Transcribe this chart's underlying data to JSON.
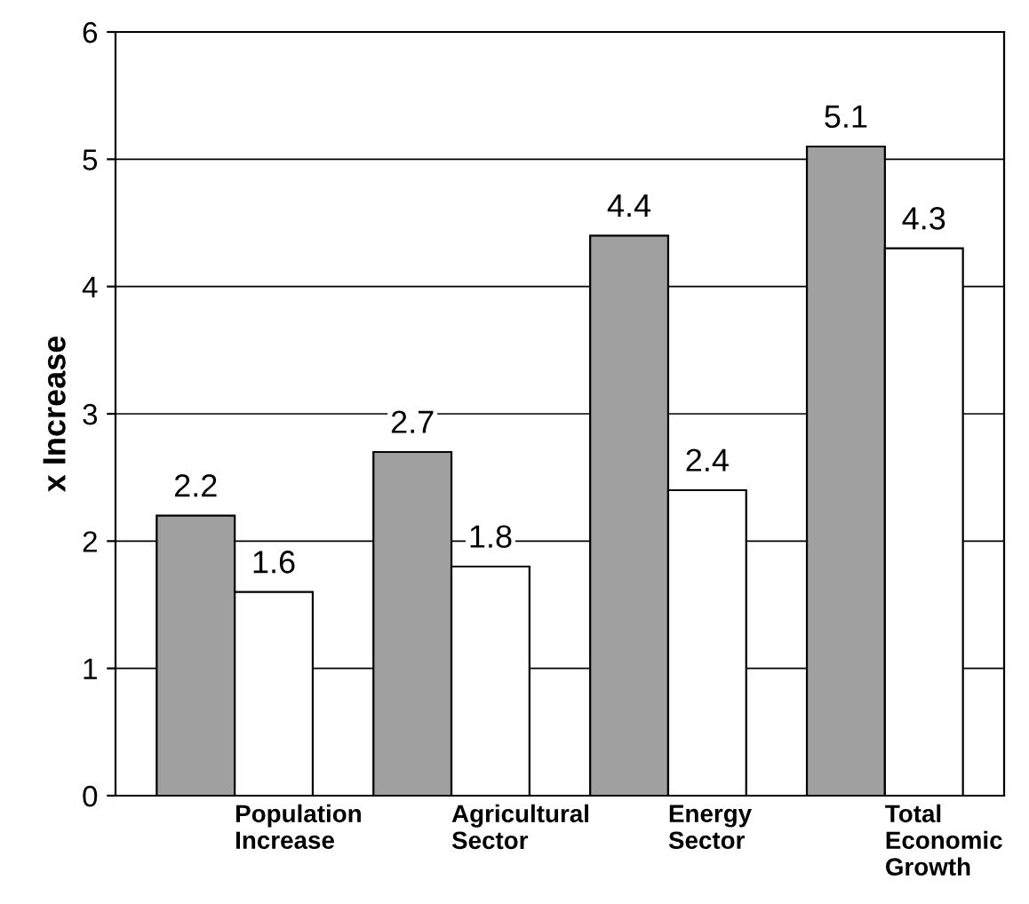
{
  "chart_data": {
    "type": "bar",
    "ylabel": "x Increase",
    "categories": [
      "Population\nIncrease",
      "Agricultural\nSector",
      "Energy\nSector",
      "Total\nEconomic\nGrowth"
    ],
    "series": [
      {
        "color": "#a0a0a0",
        "values": [
          2.2,
          2.7,
          4.4,
          5.1
        ]
      },
      {
        "color": "#ffffff",
        "values": [
          1.6,
          1.8,
          2.4,
          4.3
        ]
      }
    ],
    "ylim": [
      0,
      6
    ],
    "yticks": [
      0,
      1,
      2,
      3,
      4,
      5,
      6
    ],
    "grid": "y",
    "data_labels": true
  }
}
